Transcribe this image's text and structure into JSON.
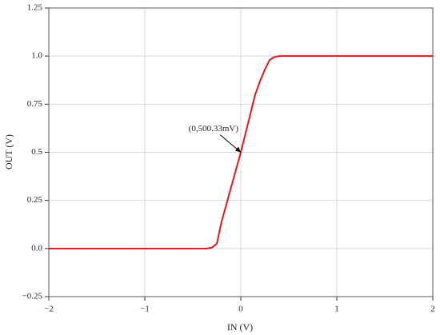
{
  "chart_data": {
    "type": "line",
    "xlabel": "IN (V)",
    "ylabel": "OUT (V)",
    "x": [
      -2,
      -0.35,
      -0.3,
      -0.25,
      -0.2,
      -0.15,
      -0.1,
      -0.05,
      0,
      0.05,
      0.1,
      0.15,
      0.2,
      0.25,
      0.3,
      0.35,
      0.4,
      0.5,
      1,
      2
    ],
    "series": [
      {
        "name": "OUT",
        "color": "#e8141b",
        "values": [
          0,
          0,
          0.005,
          0.025,
          0.14,
          0.23,
          0.32,
          0.41,
          0.5,
          0.6,
          0.7,
          0.8,
          0.87,
          0.93,
          0.98,
          0.995,
          1.0,
          1.0,
          1.0,
          1.0
        ]
      }
    ],
    "xlim": [
      -2,
      2
    ],
    "xticks": [
      {
        "value": -2,
        "label": "−2"
      },
      {
        "value": -1,
        "label": "−1"
      },
      0,
      1,
      2
    ],
    "ylim": [
      -0.25,
      1.25
    ],
    "yticks": [
      {
        "value": -0.25,
        "label": "−0.25"
      },
      {
        "value": 0,
        "label": "0.0"
      },
      0.25,
      0.5,
      0.75,
      {
        "value": 1,
        "label": "1.0"
      },
      1.25
    ],
    "grid": true,
    "annotation": {
      "text": "(0,500.33mV)",
      "x": 0,
      "y": 0.5
    }
  }
}
